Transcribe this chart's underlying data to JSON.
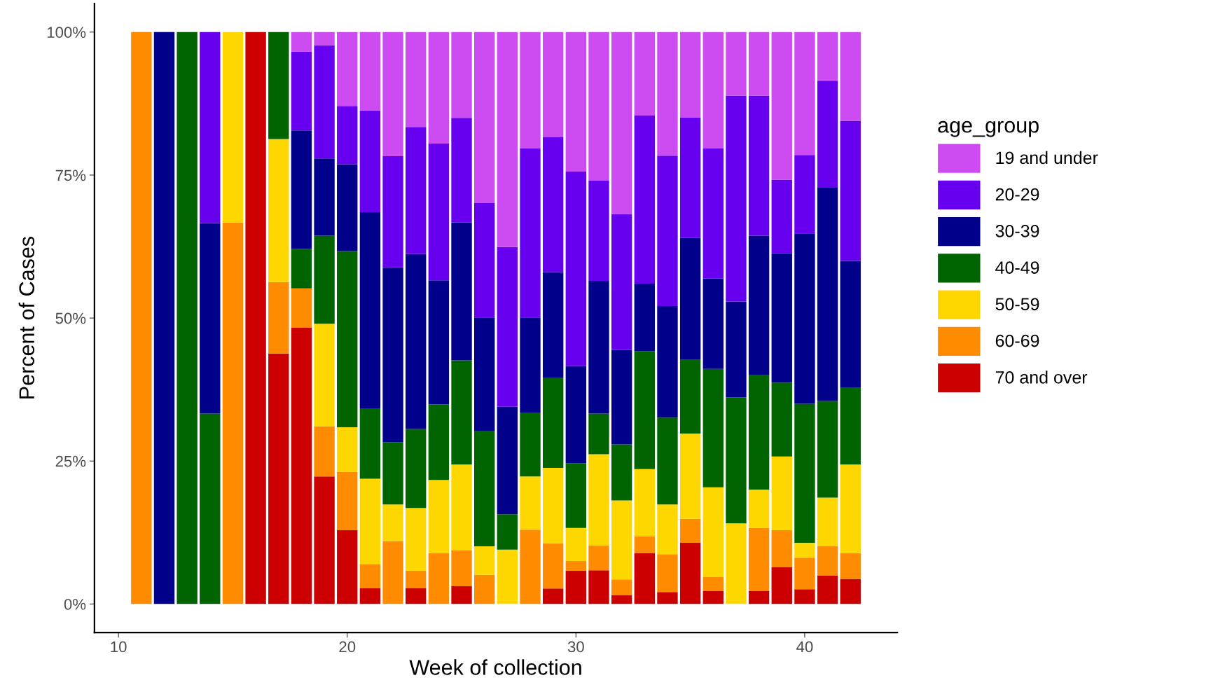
{
  "chart_data": {
    "type": "bar",
    "stacked": true,
    "xlabel": "Week of collection",
    "ylabel": "Percent of Cases",
    "legend_title": "age_group",
    "legend": "right",
    "grid": false,
    "x": [
      11,
      12,
      13,
      14,
      15,
      16,
      17,
      18,
      19,
      20,
      21,
      22,
      23,
      24,
      25,
      26,
      27,
      28,
      29,
      30,
      31,
      32,
      33,
      34,
      35,
      36,
      37,
      38,
      39,
      40,
      41,
      42
    ],
    "xlim": [
      8.95,
      44.05
    ],
    "xticks": [
      10,
      20,
      30,
      40
    ],
    "ylim": [
      -5,
      105
    ],
    "yticks": [
      {
        "value": 0,
        "label": "0%"
      },
      {
        "value": 25,
        "label": "25%"
      },
      {
        "value": 50,
        "label": "50%"
      },
      {
        "value": 75,
        "label": "75%"
      },
      {
        "value": 100,
        "label": "100%"
      }
    ],
    "series": [
      {
        "name": "70 and over",
        "color": "#cc0000",
        "values": [
          0,
          0,
          0,
          0,
          0,
          100,
          43.8,
          48.3,
          22.3,
          12.9,
          2.8,
          0,
          2.8,
          0,
          3.1,
          0,
          0,
          0,
          2.7,
          5.8,
          5.9,
          1.5,
          8.9,
          2.1,
          10.7,
          2.3,
          0,
          2.3,
          6.4,
          2.6,
          5.0,
          4.4
        ]
      },
      {
        "name": "60-69",
        "color": "#ff8c00",
        "values": [
          100,
          0,
          0,
          0,
          66.7,
          0,
          12.5,
          6.9,
          8.8,
          10.2,
          4.2,
          11.0,
          3.0,
          8.9,
          6.3,
          5.1,
          0,
          13.0,
          7.9,
          1.7,
          4.3,
          2.8,
          2.9,
          6.6,
          4.2,
          2.4,
          0,
          11.0,
          6.5,
          5.5,
          5.1,
          4.5
        ]
      },
      {
        "name": "50-59",
        "color": "#ffd700",
        "values": [
          0,
          0,
          0,
          0,
          33.3,
          0,
          25,
          0,
          17.9,
          7.8,
          14.9,
          6.4,
          11.0,
          12.8,
          15.0,
          5.0,
          9.5,
          9.3,
          13.2,
          5.8,
          16.0,
          13.8,
          11.8,
          8.7,
          14.9,
          15.7,
          14.1,
          6.7,
          12.9,
          2.6,
          8.5,
          15.5
        ]
      },
      {
        "name": "40-49",
        "color": "#006400",
        "values": [
          0,
          0,
          100,
          33.3,
          0,
          0,
          18.7,
          6.9,
          15.4,
          30.8,
          12.3,
          10.9,
          13.8,
          13.2,
          18.2,
          20.1,
          6.2,
          11.1,
          15.8,
          11.3,
          7.1,
          9.8,
          20.6,
          15.2,
          12.9,
          20.7,
          22.0,
          20.0,
          12.9,
          24.3,
          16.9,
          13.4
        ]
      },
      {
        "name": "30-39",
        "color": "#00008b",
        "values": [
          0,
          100,
          0,
          33.3,
          0,
          0,
          0,
          20.7,
          13.5,
          15.2,
          34.3,
          30.5,
          30.6,
          21.7,
          24.1,
          19.9,
          18.8,
          16.7,
          18.4,
          17.0,
          23.2,
          16.5,
          11.8,
          19.5,
          21.3,
          15.8,
          16.8,
          24.4,
          22.6,
          29.8,
          37.3,
          22.2
        ]
      },
      {
        "name": "20-29",
        "color": "#6600ee",
        "values": [
          0,
          0,
          0,
          33.4,
          0,
          0,
          0,
          13.8,
          19.8,
          10.2,
          17.8,
          19.5,
          22.2,
          23.9,
          18.3,
          20.0,
          27.9,
          29.6,
          23.6,
          34.0,
          17.5,
          23.8,
          29.4,
          26.3,
          21.1,
          22.8,
          36.0,
          24.5,
          12.9,
          13.7,
          18.7,
          24.5
        ]
      },
      {
        "name": "19 and under",
        "color": "#cc4cf2",
        "values": [
          0,
          0,
          0,
          0,
          0,
          0,
          0,
          3.4,
          2.3,
          12.9,
          13.7,
          21.7,
          16.6,
          19.5,
          15.0,
          29.9,
          37.6,
          20.3,
          18.4,
          24.4,
          26.0,
          31.8,
          14.6,
          21.6,
          14.9,
          20.3,
          11.1,
          11.1,
          25.8,
          21.5,
          8.5,
          15.5
        ]
      }
    ]
  }
}
